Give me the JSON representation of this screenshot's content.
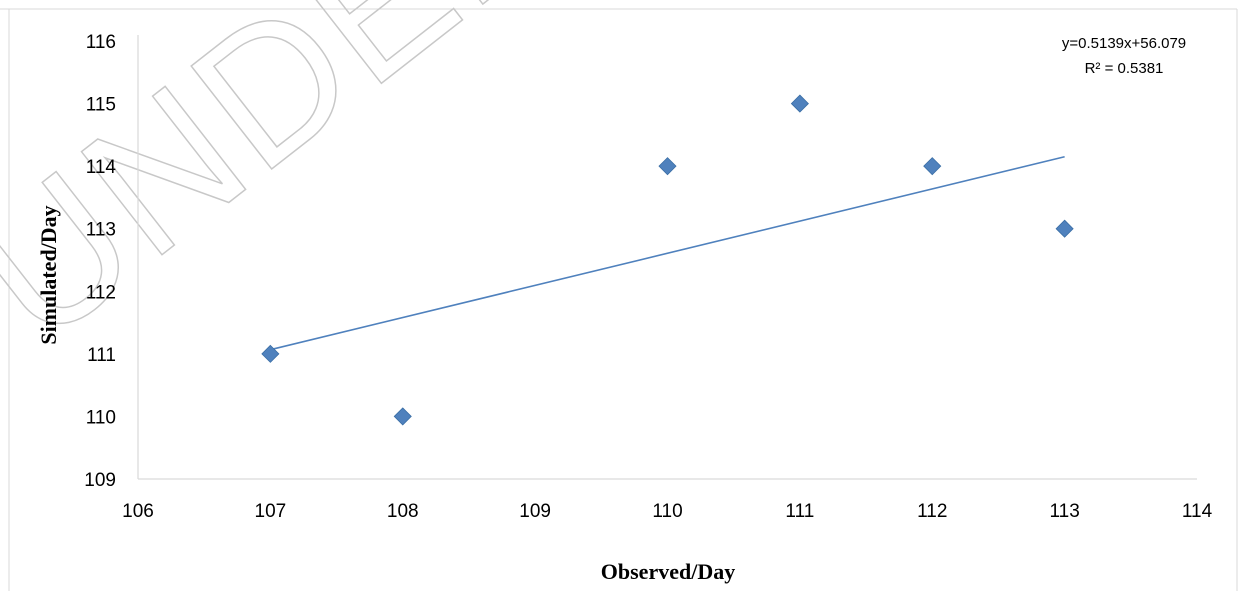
{
  "watermark_text": "UNDER PEER REVIEW",
  "chart_data": {
    "type": "scatter",
    "title": "",
    "xlabel": "Observed/Day",
    "ylabel": "Simulated/Day",
    "xlim": [
      106,
      114
    ],
    "ylim": [
      109,
      116
    ],
    "x_ticks": [
      106,
      107,
      108,
      109,
      110,
      111,
      112,
      113,
      114
    ],
    "y_ticks": [
      109,
      110,
      111,
      112,
      113,
      114,
      115,
      116
    ],
    "x_tick_labels": [
      "106",
      "107",
      "108",
      "109",
      "110",
      "111",
      "112",
      "113",
      "114"
    ],
    "y_tick_labels": [
      "109",
      "110",
      "111",
      "112",
      "113",
      "114",
      "115",
      "116"
    ],
    "series": [
      {
        "marker": "diamond",
        "color": "#4F81BD",
        "points": [
          {
            "x": 107,
            "y": 111
          },
          {
            "x": 108,
            "y": 110
          },
          {
            "x": 110,
            "y": 114
          },
          {
            "x": 111,
            "y": 115
          },
          {
            "x": 112,
            "y": 114
          },
          {
            "x": 113,
            "y": 113
          }
        ]
      }
    ],
    "trendline": {
      "type": "linear",
      "slope": 0.5139,
      "intercept": 56.079,
      "x_range": [
        107,
        113
      ],
      "color": "#4F81BD"
    },
    "equation_text": "y=0.5139x+56.079",
    "r2_text": "R² = 0.5381",
    "grid": false,
    "legend": "none"
  }
}
